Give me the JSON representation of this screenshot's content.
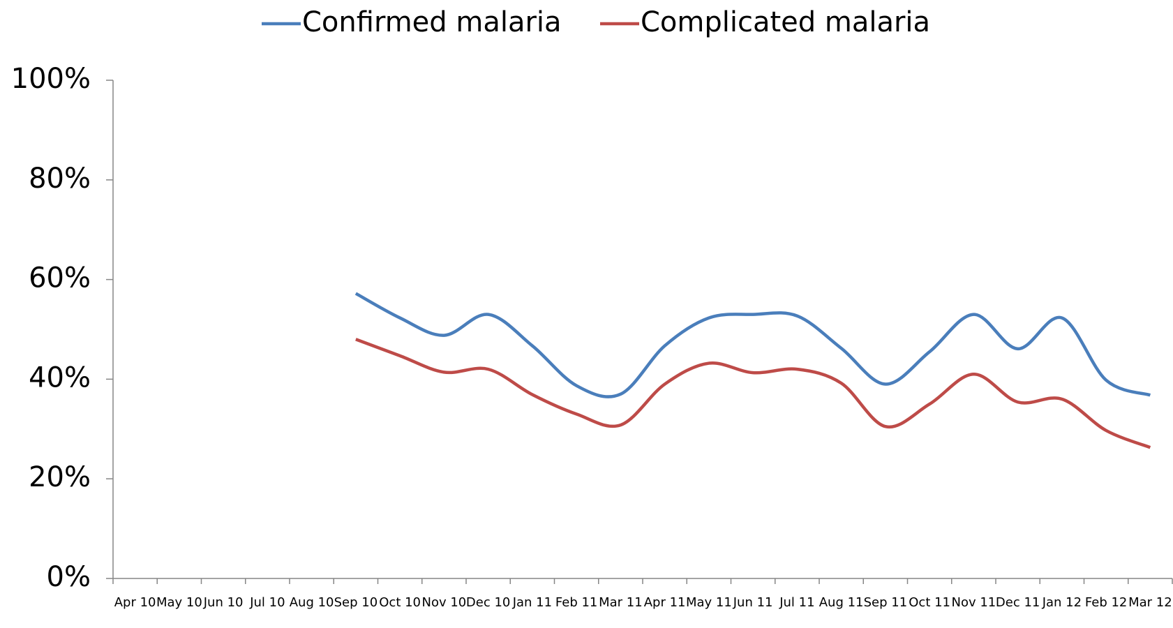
{
  "chart_data": {
    "type": "line",
    "categories": [
      "Apr 10",
      "May 10",
      "Jun 10",
      "Jul 10",
      "Aug 10",
      "Sep 10",
      "Oct 10",
      "Nov 10",
      "Dec 10",
      "Jan 11",
      "Feb 11",
      "Mar 11",
      "Apr 11",
      "May 11",
      "Jun 11",
      "Jul 11",
      "Aug 11",
      "Sep 11",
      "Oct 11",
      "Nov 11",
      "Dec 11",
      "Jan 12",
      "Feb 12",
      "Mar 12"
    ],
    "series": [
      {
        "name": "Confirmed malaria",
        "color": "#4a7ebb",
        "values": [
          null,
          null,
          null,
          null,
          null,
          57.2,
          52.3,
          48.8,
          53,
          46.7,
          38.7,
          37,
          46.7,
          52.3,
          53,
          52.7,
          46.2,
          39,
          45.5,
          53,
          46.1,
          52.3,
          39.8,
          36.8
        ]
      },
      {
        "name": "Complicated malaria",
        "color": "#be4b48",
        "values": [
          null,
          null,
          null,
          null,
          null,
          48,
          44.7,
          41.4,
          42,
          36.9,
          33,
          30.8,
          39,
          43.2,
          41.3,
          42,
          39.2,
          30.5,
          35,
          41,
          35.4,
          36,
          29.7,
          26.3
        ]
      }
    ],
    "ylim": [
      0,
      100
    ],
    "yticks": [
      {
        "value": 0,
        "label": "0%"
      },
      {
        "value": 20,
        "label": "20%"
      },
      {
        "value": 40,
        "label": "40%"
      },
      {
        "value": 60,
        "label": "60%"
      },
      {
        "value": 80,
        "label": "80%"
      },
      {
        "value": 100,
        "label": "100%"
      }
    ],
    "legend": "top"
  }
}
